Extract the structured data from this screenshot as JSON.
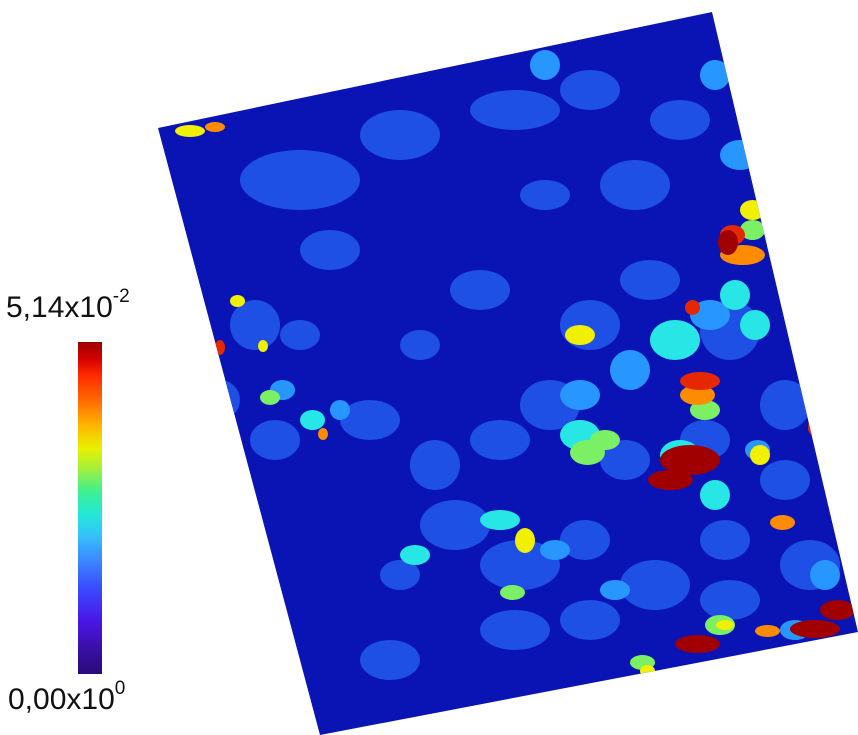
{
  "colorbar": {
    "max_mantissa": "5,14x10",
    "max_exponent": "-2",
    "min_mantissa": "0,00x10",
    "min_exponent": "0",
    "colormap": "jet"
  },
  "map": {
    "background_color": "#0a14b4",
    "patch_colors": {
      "blue": "#1e50e6",
      "light_blue": "#2896ff",
      "cyan": "#28e6e6",
      "green": "#7cf064",
      "yellow": "#f0f000",
      "orange": "#ff8c00",
      "red": "#e62800",
      "dark_red": "#a00000"
    }
  }
}
